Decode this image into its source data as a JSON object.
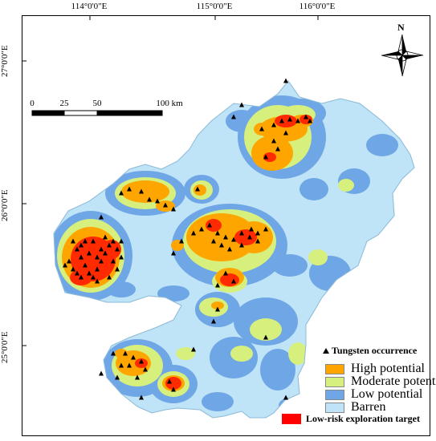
{
  "graticule": {
    "lon_labels": [
      "114°0'0\"E",
      "115°0'0\"E",
      "116°0'0\"E"
    ],
    "lat_labels": [
      "27°0'0\"E",
      "26°0'0\"E",
      "25°0'0\"E"
    ]
  },
  "scale_bar": {
    "labels": [
      "0",
      "25",
      "50",
      "100 km"
    ]
  },
  "north_arrow": {
    "label": "N"
  },
  "legend": {
    "occurrence_label": "Tungsten occurrence",
    "classes": [
      {
        "label": "High potential",
        "color": "#ffa500"
      },
      {
        "label": "Moderate potential",
        "color": "#d7f07d"
      },
      {
        "label": "Low potential",
        "color": "#6fa6e6"
      },
      {
        "label": "Barren",
        "color": "#bfe3f7"
      }
    ],
    "target_label": "Low-risk exploration target",
    "target_color": "#ff0000"
  }
}
